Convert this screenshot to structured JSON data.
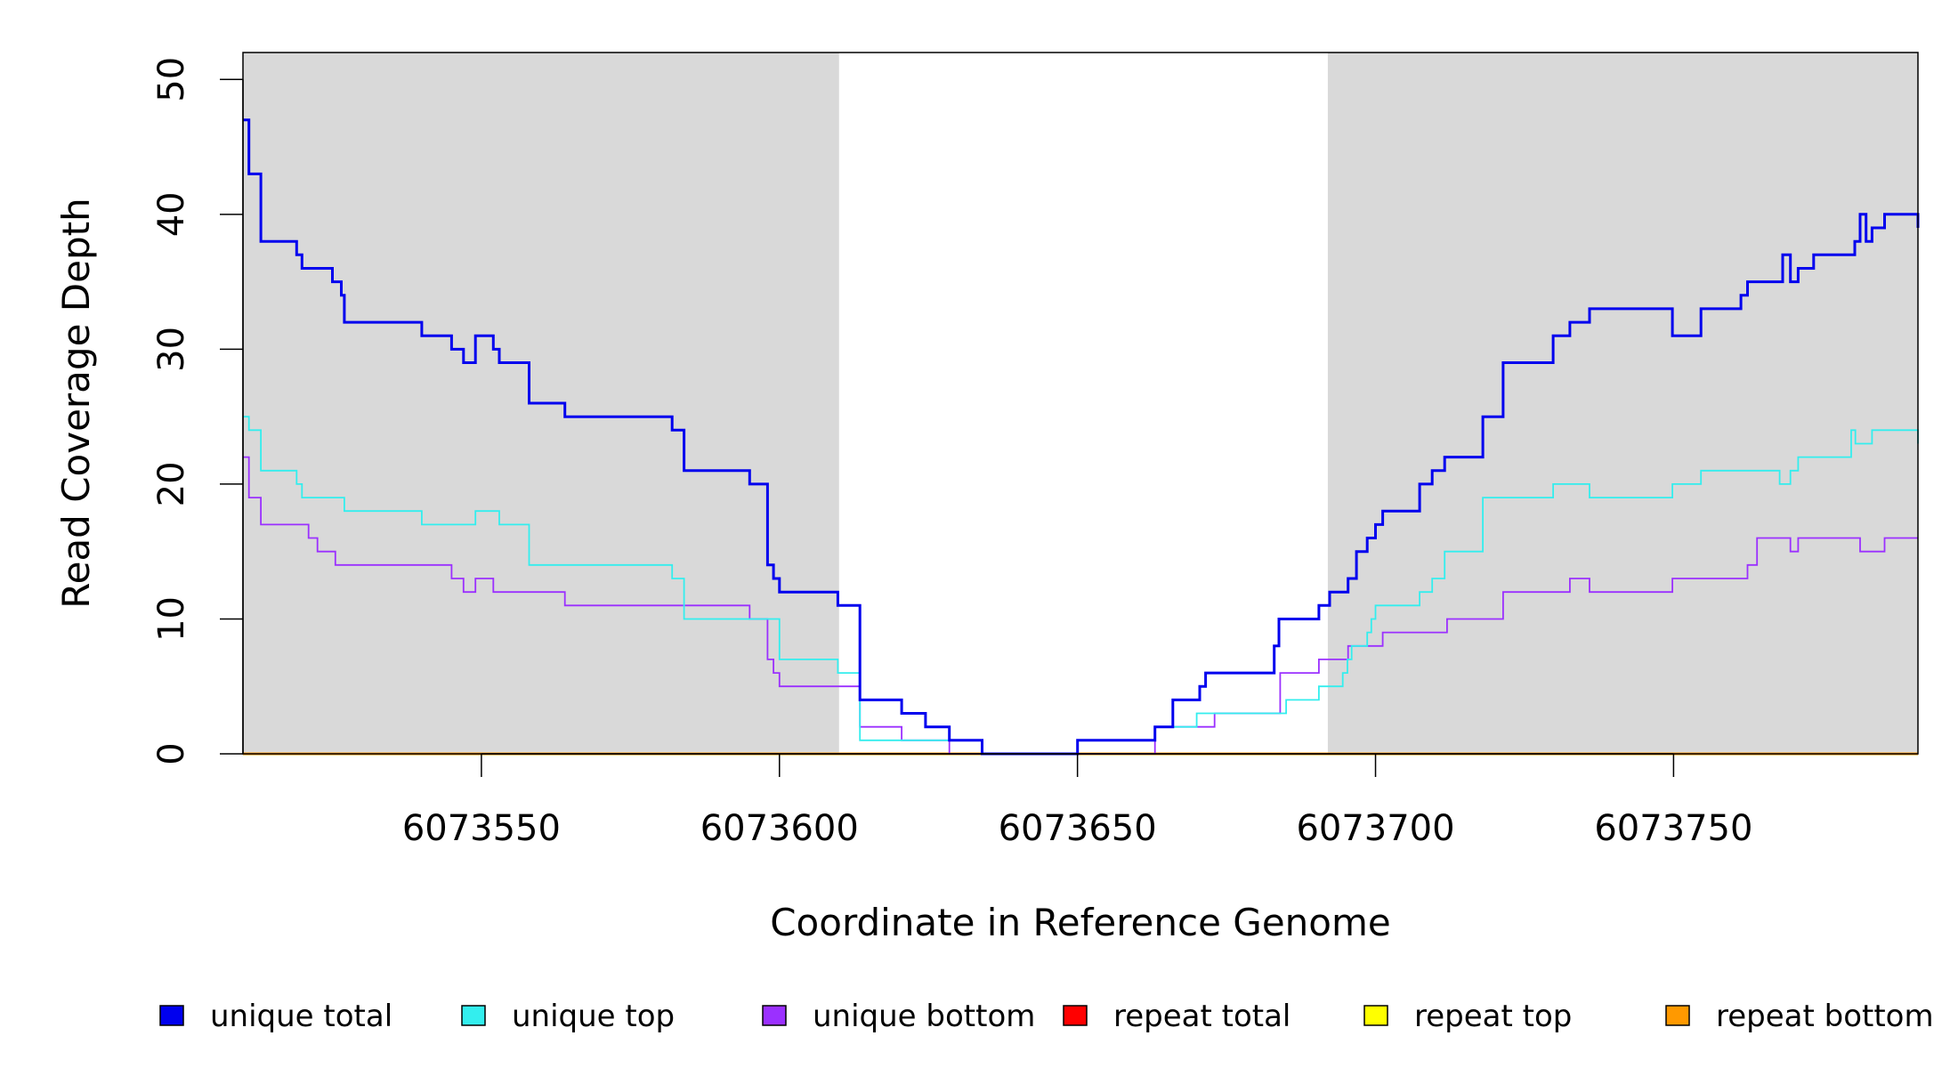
{
  "chart_data": {
    "type": "line",
    "title": "",
    "xlabel": "Coordinate in Reference Genome",
    "ylabel": "Read Coverage Depth",
    "xlim": [
      6073510,
      6073791
    ],
    "ylim": [
      0,
      52
    ],
    "x_ticks": [
      6073550,
      6073600,
      6073650,
      6073700,
      6073750
    ],
    "x_tick_labels": [
      "6073550",
      "6073600",
      "6073650",
      "6073700",
      "6073750"
    ],
    "y_ticks": [
      0,
      10,
      20,
      30,
      40,
      50
    ],
    "y_tick_labels": [
      "0",
      "10",
      "20",
      "30",
      "40",
      "50"
    ],
    "grid": false,
    "shaded_regions": [
      {
        "x_start": 6073510,
        "x_end": 6073610,
        "color": "#d9d9d9"
      },
      {
        "x_start": 6073692,
        "x_end": 6073791,
        "color": "#d9d9d9"
      }
    ],
    "legend_position": "bottom",
    "step": true,
    "series": [
      {
        "name": "unique total",
        "color": "#0000ee",
        "x": [
          6073510,
          6073511,
          6073513,
          6073519,
          6073519.9,
          6073520.7,
          6073525,
          6073526.5,
          6073527,
          6073540,
          6073545,
          6073547,
          6073549,
          6073552,
          6073553,
          6073558,
          6073564,
          6073582,
          6073584,
          6073595,
          6073598,
          6073599,
          6073600,
          6073609.8,
          6073613.5,
          6073620.5,
          6073624.5,
          6073628.5,
          6073634,
          6073650,
          6073663,
          6073666,
          6073670.5,
          6073671.5,
          6073683,
          6073683.8,
          6073685,
          6073690.5,
          6073692.3,
          6073695.4,
          6073696.8,
          6073698.6,
          6073700,
          6073701.2,
          6073707.4,
          6073709.5,
          6073711.6,
          6073718,
          6073721.4,
          6073729.8,
          6073732.6,
          6073735.9,
          6073749.8,
          6073754.6,
          6073761.3,
          6073762.4,
          6073768.3,
          6073769.6,
          6073770.9,
          6073773.5,
          6073780.4,
          6073781.3,
          6073782.3,
          6073783.3,
          6073785.4,
          6073791
        ],
        "values": [
          47,
          43,
          38,
          37,
          36,
          36,
          35,
          34,
          32,
          31,
          30,
          29,
          31,
          30,
          29,
          26,
          25,
          24,
          21,
          20,
          14,
          13,
          12,
          11,
          4,
          3,
          2,
          1,
          0,
          1,
          2,
          4,
          5,
          6,
          8,
          10,
          10,
          11,
          12,
          13,
          15,
          16,
          17,
          18,
          20,
          21,
          22,
          25,
          29,
          31,
          32,
          33,
          31,
          33,
          34,
          35,
          37,
          35,
          36,
          37,
          38,
          40,
          38,
          39,
          40,
          39
        ]
      },
      {
        "name": "unique top",
        "color": "#33eeee",
        "x": [
          6073510,
          6073511,
          6073513,
          6073519,
          6073519.9,
          6073520.7,
          6073527,
          6073540,
          6073549,
          6073553,
          6073558,
          6073582,
          6073584,
          6073600,
          6073609.8,
          6073613.5,
          6073617.5,
          6073624.5,
          6073628.5,
          6073634,
          6073650,
          6073663,
          6073670,
          6073672,
          6073685,
          6073690.5,
          6073694.5,
          6073695.3,
          6073696,
          6073698.6,
          6073699.3,
          6073700,
          6073707.4,
          6073709.5,
          6073711.6,
          6073718,
          6073729.8,
          6073735.9,
          6073749.8,
          6073754.6,
          6073767.8,
          6073769.6,
          6073770.9,
          6073775.8,
          6073779.8,
          6073780.5,
          6073783.3,
          6073791
        ],
        "values": [
          25,
          24,
          21,
          20,
          19,
          19,
          18,
          17,
          18,
          17,
          14,
          13,
          10,
          7,
          6,
          1,
          1,
          1,
          1,
          0,
          1,
          2,
          3,
          3,
          4,
          5,
          6,
          7,
          8,
          9,
          10,
          11,
          12,
          13,
          15,
          19,
          20,
          19,
          20,
          21,
          20,
          21,
          22,
          22,
          24,
          23,
          24,
          23
        ]
      },
      {
        "name": "unique bottom",
        "color": "#9b30ff",
        "x": [
          6073510,
          6073511,
          6073513,
          6073521,
          6073522.5,
          6073525.5,
          6073527,
          6073545,
          6073547,
          6073549,
          6073552,
          6073564,
          6073595,
          6073598,
          6073599,
          6073600,
          6073613.5,
          6073620.5,
          6073628.5,
          6073634,
          6073650,
          6073663,
          6073673,
          6073684,
          6073690.5,
          6073694.5,
          6073695.4,
          6073699,
          6073700,
          6073701.2,
          6073712,
          6073721.4,
          6073732.6,
          6073735.9,
          6073749.8,
          6073762.4,
          6073764,
          6073769.6,
          6073770.9,
          6073780.4,
          6073781.3,
          6073785.4,
          6073791
        ],
        "values": [
          22,
          19,
          17,
          16,
          15,
          14,
          14,
          13,
          12,
          13,
          12,
          11,
          10,
          7,
          6,
          5,
          2,
          1,
          0,
          0,
          0,
          2,
          3,
          6,
          7,
          7,
          8,
          8,
          8,
          9,
          10,
          12,
          13,
          12,
          13,
          14,
          16,
          15,
          16,
          16,
          15,
          16,
          16
        ]
      },
      {
        "name": "repeat total",
        "color": "#ff0000",
        "x": [
          6073510,
          6073791
        ],
        "values": [
          0,
          0
        ]
      },
      {
        "name": "repeat top",
        "color": "#ffff00",
        "x": [
          6073510,
          6073791
        ],
        "values": [
          0,
          0
        ]
      },
      {
        "name": "repeat bottom",
        "color": "#ff9900",
        "x": [
          6073510,
          6073791
        ],
        "values": [
          0,
          0
        ]
      }
    ]
  }
}
